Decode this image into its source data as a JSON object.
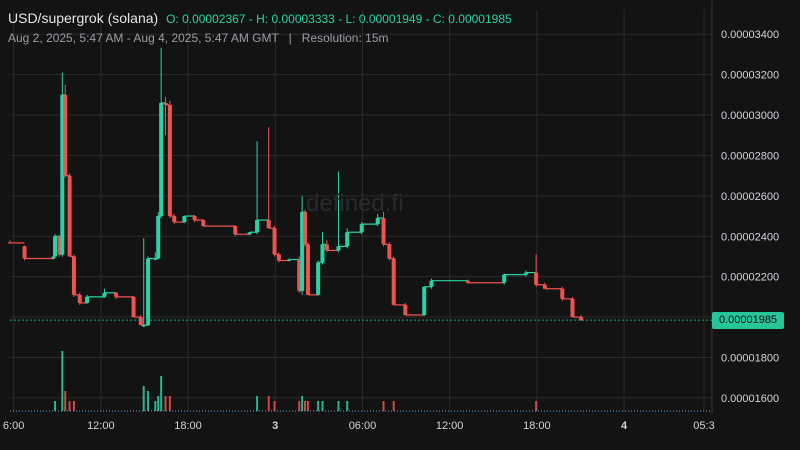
{
  "header": {
    "symbol": "USD/supergrok (solana)",
    "ohlc_text": "O: 0.00002367 - H: 0.00003333 - L: 0.00001949 - C: 0.00001985",
    "range": "Aug 2, 2025, 5:47 AM - Aug 4, 2025, 5:47 AM GMT",
    "separator": "|",
    "resolution": "Resolution: 15m"
  },
  "watermark": "defined.fi",
  "last_price_label": "0.00001985",
  "colors": {
    "up": "#26a69a",
    "down": "#ef5350",
    "up_bright": "#2ad3a4",
    "background": "#131313",
    "grid": "#2b2b2b"
  },
  "chart_data": {
    "type": "candlestick",
    "title": "USD/supergrok (solana)",
    "open": 2.367e-05,
    "high": 3.333e-05,
    "low": 1.949e-05,
    "close": 1.985e-05,
    "resolution": "15m",
    "y_ticks": [
      "0.00001600",
      "0.00001800",
      "0.00002000",
      "0.00002200",
      "0.00002400",
      "0.00002600",
      "0.00002800",
      "0.00003000",
      "0.00003200",
      "0.00003400"
    ],
    "ylim": [
      1.53e-05,
      3.52e-05
    ],
    "x_ticks": [
      {
        "label": "6:00",
        "t": 0.25,
        "bold": false
      },
      {
        "label": "12:00",
        "t": 6.25,
        "bold": false
      },
      {
        "label": "18:00",
        "t": 12.25,
        "bold": false
      },
      {
        "label": "3",
        "t": 18.25,
        "bold": true
      },
      {
        "label": "06:00",
        "t": 24.25,
        "bold": false
      },
      {
        "label": "12:00",
        "t": 30.25,
        "bold": false
      },
      {
        "label": "18:00",
        "t": 36.25,
        "bold": false
      },
      {
        "label": "4",
        "t": 42.25,
        "bold": true
      },
      {
        "label": "05:3",
        "t": 47.75,
        "bold": false
      }
    ],
    "x_domain": [
      0,
      48.3
    ],
    "last_price": 1.985e-05,
    "candles": [
      {
        "t": 0.0,
        "o": 2.37e-05,
        "h": 2.38e-05,
        "l": 2.365e-05,
        "c": 2.367e-05,
        "v": 1
      },
      {
        "t": 1.0,
        "o": 2.35e-05,
        "h": 2.355e-05,
        "l": 2.28e-05,
        "c": 2.29e-05,
        "v": 1
      },
      {
        "t": 3.0,
        "o": 2.29e-05,
        "h": 2.3e-05,
        "l": 2.285e-05,
        "c": 2.3e-05,
        "v": 1
      },
      {
        "t": 3.1,
        "o": 2.3e-05,
        "h": 2.41e-05,
        "l": 2.3e-05,
        "c": 2.4e-05,
        "v": 2
      },
      {
        "t": 3.4,
        "o": 2.4e-05,
        "h": 2.405e-05,
        "l": 2.3e-05,
        "c": 2.31e-05,
        "v": 1
      },
      {
        "t": 3.6,
        "o": 2.31e-05,
        "h": 3.21e-05,
        "l": 2.3e-05,
        "c": 3.1e-05,
        "v": 12
      },
      {
        "t": 3.8,
        "o": 3.1e-05,
        "h": 3.15e-05,
        "l": 2.69e-05,
        "c": 2.7e-05,
        "v": 4
      },
      {
        "t": 4.1,
        "o": 2.7e-05,
        "h": 2.71e-05,
        "l": 2.3e-05,
        "c": 2.3e-05,
        "v": 2
      },
      {
        "t": 4.4,
        "o": 2.3e-05,
        "h": 2.31e-05,
        "l": 2.1e-05,
        "c": 2.11e-05,
        "v": 2
      },
      {
        "t": 4.8,
        "o": 2.11e-05,
        "h": 2.12e-05,
        "l": 2.06e-05,
        "c": 2.07e-05,
        "v": 1
      },
      {
        "t": 5.3,
        "o": 2.07e-05,
        "h": 2.11e-05,
        "l": 2.065e-05,
        "c": 2.1e-05,
        "v": 1
      },
      {
        "t": 6.5,
        "o": 2.1e-05,
        "h": 2.14e-05,
        "l": 2.095e-05,
        "c": 2.12e-05,
        "v": 1
      },
      {
        "t": 7.3,
        "o": 2.12e-05,
        "h": 2.125e-05,
        "l": 2.09e-05,
        "c": 2.1e-05,
        "v": 1
      },
      {
        "t": 8.5,
        "o": 2.1e-05,
        "h": 2.105e-05,
        "l": 2e-05,
        "c": 2e-05,
        "v": 1
      },
      {
        "t": 9.0,
        "o": 2e-05,
        "h": 2.01e-05,
        "l": 1.96e-05,
        "c": 1.96e-05,
        "v": 1
      },
      {
        "t": 9.2,
        "o": 1.96e-05,
        "h": 2.39e-05,
        "l": 1.95e-05,
        "c": 1.96e-05,
        "v": 5
      },
      {
        "t": 9.5,
        "o": 1.96e-05,
        "h": 2.3e-05,
        "l": 1.955e-05,
        "c": 2.29e-05,
        "v": 4
      },
      {
        "t": 10.0,
        "o": 2.29e-05,
        "h": 2.32e-05,
        "l": 2.28e-05,
        "c": 2.29e-05,
        "v": 2
      },
      {
        "t": 10.2,
        "o": 2.29e-05,
        "h": 2.52e-05,
        "l": 2.285e-05,
        "c": 2.5e-05,
        "v": 3
      },
      {
        "t": 10.4,
        "o": 2.5e-05,
        "h": 3.333e-05,
        "l": 2.49e-05,
        "c": 3.06e-05,
        "v": 7
      },
      {
        "t": 10.7,
        "o": 3.06e-05,
        "h": 3.09e-05,
        "l": 2.9e-05,
        "c": 3.05e-05,
        "v": 3
      },
      {
        "t": 11.0,
        "o": 3.05e-05,
        "h": 3.07e-05,
        "l": 2.49e-05,
        "c": 2.5e-05,
        "v": 3
      },
      {
        "t": 11.3,
        "o": 2.5e-05,
        "h": 2.51e-05,
        "l": 2.46e-05,
        "c": 2.47e-05,
        "v": 1
      },
      {
        "t": 12.0,
        "o": 2.47e-05,
        "h": 2.5e-05,
        "l": 2.465e-05,
        "c": 2.5e-05,
        "v": 1
      },
      {
        "t": 12.7,
        "o": 2.5e-05,
        "h": 2.505e-05,
        "l": 2.47e-05,
        "c": 2.48e-05,
        "v": 1
      },
      {
        "t": 13.3,
        "o": 2.48e-05,
        "h": 2.485e-05,
        "l": 2.45e-05,
        "c": 2.45e-05,
        "v": 1
      },
      {
        "t": 15.5,
        "o": 2.45e-05,
        "h": 2.455e-05,
        "l": 2.4e-05,
        "c": 2.41e-05,
        "v": 1
      },
      {
        "t": 16.5,
        "o": 2.41e-05,
        "h": 2.42e-05,
        "l": 2.405e-05,
        "c": 2.42e-05,
        "v": 1
      },
      {
        "t": 17.0,
        "o": 2.42e-05,
        "h": 2.87e-05,
        "l": 2.41e-05,
        "c": 2.48e-05,
        "v": 3
      },
      {
        "t": 17.8,
        "o": 2.48e-05,
        "h": 2.94e-05,
        "l": 2.44e-05,
        "c": 2.44e-05,
        "v": 3
      },
      {
        "t": 18.2,
        "o": 2.44e-05,
        "h": 2.45e-05,
        "l": 2.3e-05,
        "c": 2.31e-05,
        "v": 2
      },
      {
        "t": 18.5,
        "o": 2.31e-05,
        "h": 2.32e-05,
        "l": 2.27e-05,
        "c": 2.28e-05,
        "v": 1
      },
      {
        "t": 19.2,
        "o": 2.28e-05,
        "h": 2.29e-05,
        "l": 2.275e-05,
        "c": 2.285e-05,
        "v": 1
      },
      {
        "t": 19.9,
        "o": 2.285e-05,
        "h": 2.3e-05,
        "l": 2.12e-05,
        "c": 2.13e-05,
        "v": 2
      },
      {
        "t": 20.1,
        "o": 2.13e-05,
        "h": 2.6e-05,
        "l": 2.11e-05,
        "c": 2.52e-05,
        "v": 3
      },
      {
        "t": 20.3,
        "o": 2.52e-05,
        "h": 2.53e-05,
        "l": 2.35e-05,
        "c": 2.36e-05,
        "v": 2
      },
      {
        "t": 20.5,
        "o": 2.36e-05,
        "h": 2.37e-05,
        "l": 2.11e-05,
        "c": 2.11e-05,
        "v": 2
      },
      {
        "t": 21.2,
        "o": 2.11e-05,
        "h": 2.28e-05,
        "l": 2.105e-05,
        "c": 2.27e-05,
        "v": 2
      },
      {
        "t": 21.5,
        "o": 2.27e-05,
        "h": 2.42e-05,
        "l": 2.26e-05,
        "c": 2.36e-05,
        "v": 2
      },
      {
        "t": 21.8,
        "o": 2.36e-05,
        "h": 2.38e-05,
        "l": 2.32e-05,
        "c": 2.33e-05,
        "v": 1
      },
      {
        "t": 22.6,
        "o": 2.33e-05,
        "h": 2.72e-05,
        "l": 2.32e-05,
        "c": 2.35e-05,
        "v": 2
      },
      {
        "t": 23.2,
        "o": 2.35e-05,
        "h": 2.44e-05,
        "l": 2.34e-05,
        "c": 2.42e-05,
        "v": 2
      },
      {
        "t": 24.2,
        "o": 2.42e-05,
        "h": 2.47e-05,
        "l": 2.41e-05,
        "c": 2.46e-05,
        "v": 1
      },
      {
        "t": 25.3,
        "o": 2.46e-05,
        "h": 2.51e-05,
        "l": 2.45e-05,
        "c": 2.49e-05,
        "v": 1
      },
      {
        "t": 25.7,
        "o": 2.49e-05,
        "h": 2.52e-05,
        "l": 2.35e-05,
        "c": 2.36e-05,
        "v": 2
      },
      {
        "t": 26.1,
        "o": 2.36e-05,
        "h": 2.37e-05,
        "l": 2.28e-05,
        "c": 2.29e-05,
        "v": 1
      },
      {
        "t": 26.4,
        "o": 2.29e-05,
        "h": 2.3e-05,
        "l": 2.06e-05,
        "c": 2.06e-05,
        "v": 2
      },
      {
        "t": 27.2,
        "o": 2.06e-05,
        "h": 2.07e-05,
        "l": 2.01e-05,
        "c": 2.01e-05,
        "v": 1
      },
      {
        "t": 28.5,
        "o": 2.01e-05,
        "h": 2.15e-05,
        "l": 2.005e-05,
        "c": 2.15e-05,
        "v": 1
      },
      {
        "t": 29.0,
        "o": 2.15e-05,
        "h": 2.19e-05,
        "l": 2.14e-05,
        "c": 2.18e-05,
        "v": 1
      },
      {
        "t": 31.5,
        "o": 2.18e-05,
        "h": 2.185e-05,
        "l": 2.165e-05,
        "c": 2.17e-05,
        "v": 1
      },
      {
        "t": 34.0,
        "o": 2.17e-05,
        "h": 2.215e-05,
        "l": 2.16e-05,
        "c": 2.21e-05,
        "v": 1
      },
      {
        "t": 35.5,
        "o": 2.21e-05,
        "h": 2.23e-05,
        "l": 2.2e-05,
        "c": 2.22e-05,
        "v": 1
      },
      {
        "t": 36.2,
        "o": 2.22e-05,
        "h": 2.31e-05,
        "l": 2.15e-05,
        "c": 2.16e-05,
        "v": 2
      },
      {
        "t": 36.8,
        "o": 2.16e-05,
        "h": 2.17e-05,
        "l": 2.14e-05,
        "c": 2.14e-05,
        "v": 1
      },
      {
        "t": 38.0,
        "o": 2.14e-05,
        "h": 2.15e-05,
        "l": 2.08e-05,
        "c": 2.09e-05,
        "v": 1
      },
      {
        "t": 38.7,
        "o": 2.09e-05,
        "h": 2.1e-05,
        "l": 2e-05,
        "c": 2e-05,
        "v": 1
      },
      {
        "t": 39.3,
        "o": 2e-05,
        "h": 2.01e-05,
        "l": 1.98e-05,
        "c": 1.985e-05,
        "v": 1
      }
    ]
  }
}
